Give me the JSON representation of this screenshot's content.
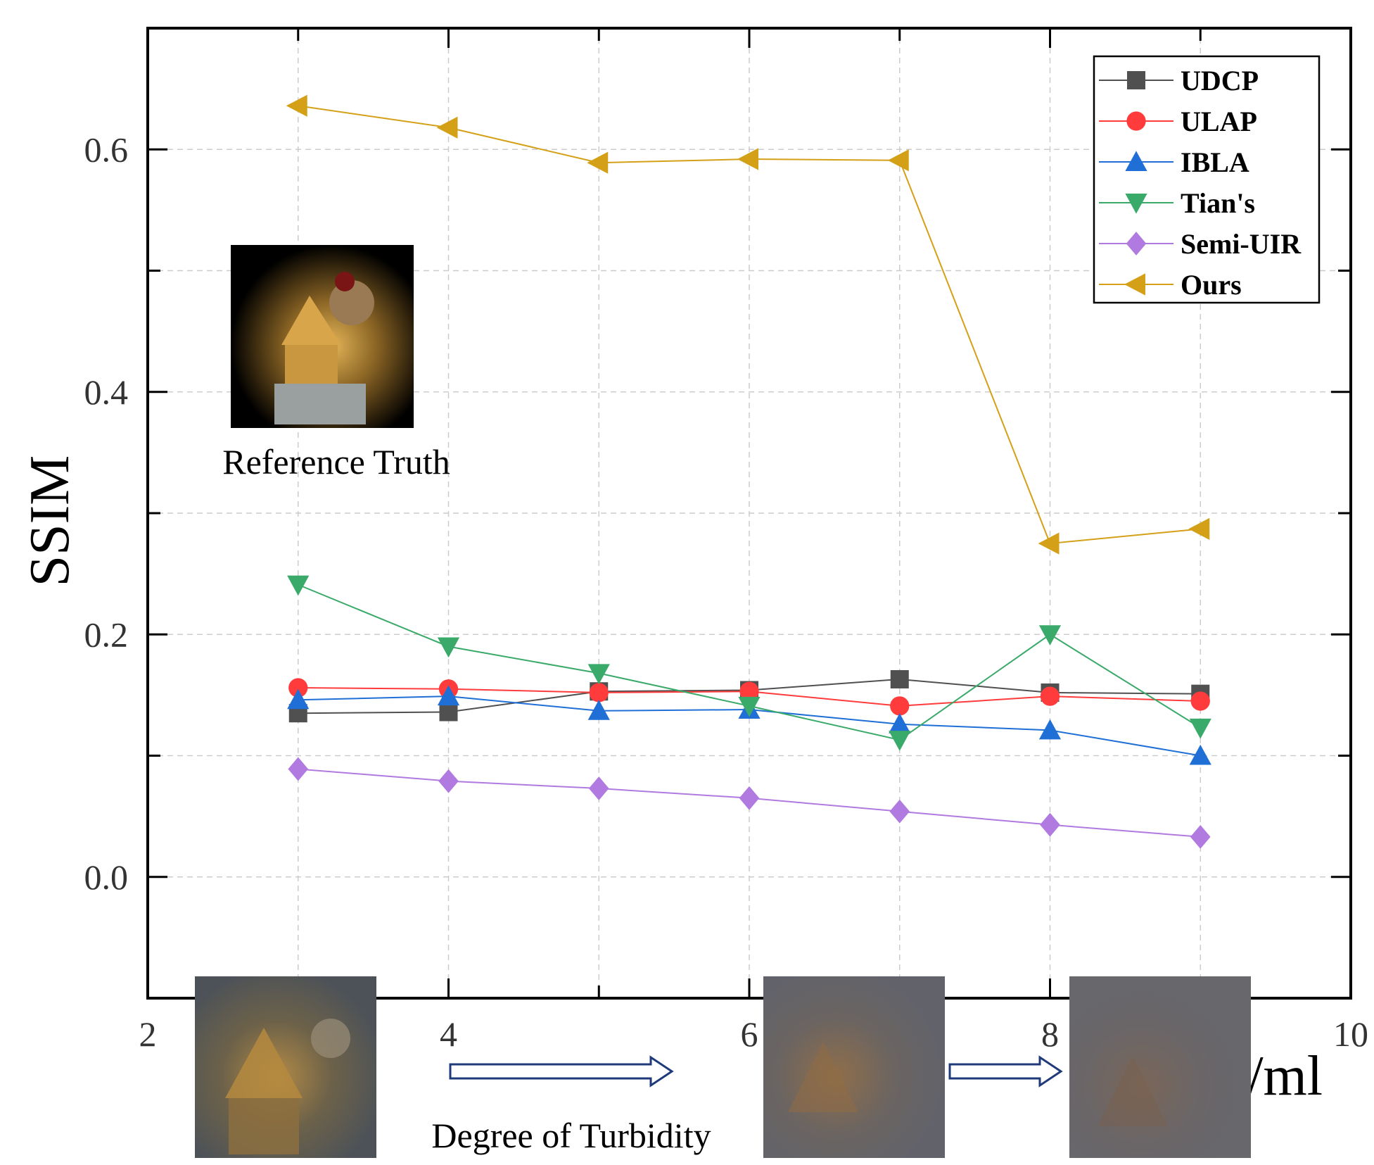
{
  "chart_data": {
    "type": "line",
    "title": "",
    "xlabel": "/ml",
    "ylabel": "SSIM",
    "xlim": [
      2,
      10
    ],
    "ylim": [
      -0.1,
      0.7
    ],
    "x_ticks": [
      2,
      4,
      6,
      8,
      10
    ],
    "x_tick_labels": [
      "2",
      "4",
      "6",
      "8",
      "10"
    ],
    "y_ticks": [
      0.0,
      0.2,
      0.4,
      0.6
    ],
    "y_tick_labels": [
      "0.0",
      "0.2",
      "0.4",
      "0.6"
    ],
    "grid": true,
    "legend_position": "top-right",
    "x": [
      3,
      4,
      5,
      6,
      7,
      8,
      9
    ],
    "series": [
      {
        "name": "UDCP",
        "color": "#505050",
        "marker": "square",
        "values": [
          0.135,
          0.136,
          0.153,
          0.154,
          0.163,
          0.152,
          0.151
        ]
      },
      {
        "name": "ULAP",
        "color": "#ff3b3b",
        "marker": "circle",
        "values": [
          0.156,
          0.155,
          0.152,
          0.153,
          0.141,
          0.149,
          0.145
        ]
      },
      {
        "name": "IBLA",
        "color": "#1f6fd6",
        "marker": "triangle-up",
        "values": [
          0.146,
          0.149,
          0.137,
          0.138,
          0.126,
          0.121,
          0.1
        ]
      },
      {
        "name": "Tian's",
        "color": "#3aaa6a",
        "marker": "triangle-down",
        "values": [
          0.241,
          0.19,
          0.168,
          0.141,
          0.113,
          0.2,
          0.123
        ]
      },
      {
        "name": "Semi-UIR",
        "color": "#b07ae0",
        "marker": "diamond",
        "values": [
          0.089,
          0.079,
          0.073,
          0.065,
          0.054,
          0.043,
          0.033
        ]
      },
      {
        "name": "Ours",
        "color": "#d4a017",
        "marker": "triangle-left",
        "values": [
          0.636,
          0.618,
          0.589,
          0.592,
          0.591,
          0.275,
          0.287
        ]
      }
    ]
  },
  "annotations": {
    "reference_caption": "Reference Truth",
    "turbidity_caption": "Degree of Turbidity"
  },
  "images": {
    "reference": "reference truth image (toy house and mouse figurine on black background)",
    "low": "low turbidity underwater image",
    "mid": "medium turbidity underwater image",
    "high": "high turbidity underwater image"
  }
}
